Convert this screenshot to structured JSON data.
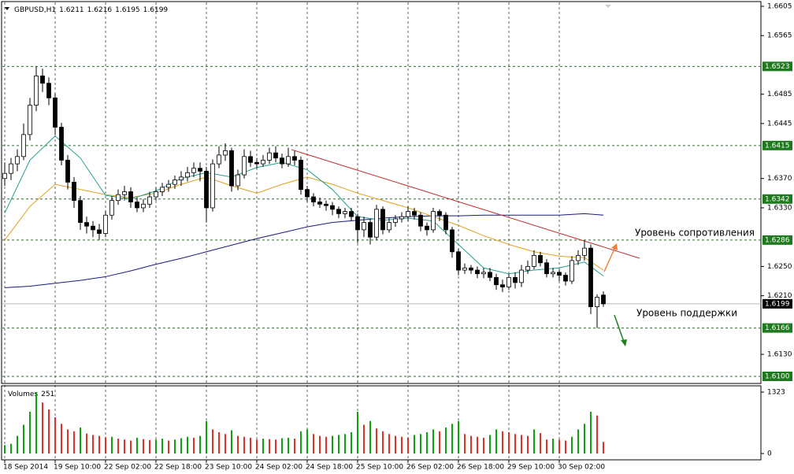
{
  "chart_data": {
    "type": "candlestick",
    "symbol": "GBPUSD,H1",
    "open": [
      1.637,
      1.6377,
      1.639,
      1.64,
      1.643,
      1.647,
      1.651,
      1.65,
      1.648,
      1.644,
      1.6395,
      1.6365,
      1.634,
      1.631,
      1.6305,
      1.63,
      1.6295,
      1.632,
      1.634,
      1.6348,
      1.6352,
      1.6338,
      1.633,
      1.6335,
      1.6345,
      1.6352,
      1.6358,
      1.6362,
      1.6368,
      1.6372,
      1.6378,
      1.6384,
      1.638,
      1.633,
      1.639,
      1.6402,
      1.6408,
      1.636,
      1.6375,
      1.64,
      1.6392,
      1.639,
      1.6395,
      1.6405,
      1.6398,
      1.639,
      1.64,
      1.6395,
      1.6355,
      1.6345,
      1.6338,
      1.6335,
      1.6333,
      1.6328,
      1.6322,
      1.6325,
      1.6318,
      1.63,
      1.631,
      1.629,
      1.6328,
      1.63,
      1.631,
      1.6315,
      1.6318,
      1.6325,
      1.632,
      1.6305,
      1.63,
      1.6325,
      1.632,
      1.63,
      1.627,
      1.6245,
      1.6248,
      1.6245,
      1.624,
      1.6242,
      1.6235,
      1.6225,
      1.6222,
      1.6235,
      1.6228,
      1.6245,
      1.625,
      1.6265,
      1.6255,
      1.624,
      1.6242,
      1.6238,
      1.623,
      1.6258,
      1.6265,
      1.6275,
      1.6195,
      1.6211
    ],
    "high": [
      1.6392,
      1.6398,
      1.641,
      1.6445,
      1.648,
      1.6523,
      1.652,
      1.6508,
      1.6486,
      1.6446,
      1.6402,
      1.6372,
      1.6346,
      1.6318,
      1.6312,
      1.6308,
      1.6326,
      1.6346,
      1.6355,
      1.636,
      1.6358,
      1.6344,
      1.6342,
      1.6352,
      1.6358,
      1.6364,
      1.6368,
      1.6374,
      1.638,
      1.6386,
      1.6392,
      1.6392,
      1.6386,
      1.6396,
      1.6414,
      1.6418,
      1.6412,
      1.6382,
      1.641,
      1.6408,
      1.6398,
      1.6402,
      1.6412,
      1.6414,
      1.6404,
      1.6412,
      1.6408,
      1.64,
      1.636,
      1.635,
      1.6344,
      1.634,
      1.6338,
      1.6332,
      1.633,
      1.633,
      1.6322,
      1.6318,
      1.6314,
      1.6334,
      1.6332,
      1.6316,
      1.632,
      1.6324,
      1.6332,
      1.633,
      1.6324,
      1.631,
      1.633,
      1.6328,
      1.6324,
      1.6304,
      1.6274,
      1.6254,
      1.6252,
      1.625,
      1.6248,
      1.6248,
      1.624,
      1.6232,
      1.624,
      1.6242,
      1.6252,
      1.6258,
      1.6272,
      1.627,
      1.626,
      1.6248,
      1.6246,
      1.6242,
      1.6264,
      1.6272,
      1.6286,
      1.628,
      1.6212,
      1.6216
    ],
    "low": [
      1.636,
      1.6368,
      1.638,
      1.6395,
      1.6422,
      1.6462,
      1.6488,
      1.647,
      1.643,
      1.6388,
      1.6355,
      1.633,
      1.63,
      1.6295,
      1.629,
      1.6286,
      1.629,
      1.6314,
      1.6334,
      1.634,
      1.633,
      1.6324,
      1.6324,
      1.633,
      1.634,
      1.6346,
      1.6352,
      1.6356,
      1.636,
      1.6366,
      1.6372,
      1.6366,
      1.631,
      1.6325,
      1.6384,
      1.6394,
      1.6352,
      1.6354,
      1.637,
      1.6386,
      1.6384,
      1.6386,
      1.639,
      1.6392,
      1.6384,
      1.6386,
      1.6388,
      1.6348,
      1.6338,
      1.6332,
      1.633,
      1.6326,
      1.632,
      1.6316,
      1.6316,
      1.6312,
      1.6282,
      1.629,
      1.628,
      1.6286,
      1.6294,
      1.6296,
      1.6304,
      1.631,
      1.6312,
      1.6314,
      1.6298,
      1.6292,
      1.6296,
      1.6312,
      1.6294,
      1.6262,
      1.6238,
      1.624,
      1.624,
      1.6234,
      1.6234,
      1.623,
      1.6218,
      1.6215,
      1.6218,
      1.622,
      1.6222,
      1.624,
      1.6246,
      1.625,
      1.6235,
      1.6235,
      1.623,
      1.6224,
      1.6226,
      1.6252,
      1.6258,
      1.6185,
      1.6166,
      1.6195
    ],
    "close": [
      1.6377,
      1.639,
      1.64,
      1.643,
      1.647,
      1.651,
      1.65,
      1.648,
      1.644,
      1.6395,
      1.6365,
      1.634,
      1.631,
      1.6305,
      1.63,
      1.6295,
      1.632,
      1.634,
      1.6348,
      1.6352,
      1.6338,
      1.633,
      1.6335,
      1.6345,
      1.6352,
      1.6358,
      1.6362,
      1.6368,
      1.6372,
      1.6378,
      1.6384,
      1.638,
      1.633,
      1.639,
      1.6402,
      1.6408,
      1.636,
      1.6375,
      1.64,
      1.6392,
      1.639,
      1.6395,
      1.6405,
      1.6398,
      1.639,
      1.64,
      1.6395,
      1.6355,
      1.6345,
      1.6338,
      1.6335,
      1.6333,
      1.6328,
      1.6322,
      1.6325,
      1.6318,
      1.63,
      1.631,
      1.629,
      1.6328,
      1.63,
      1.631,
      1.6315,
      1.6318,
      1.6325,
      1.632,
      1.6305,
      1.63,
      1.6325,
      1.632,
      1.63,
      1.627,
      1.6245,
      1.6248,
      1.6245,
      1.624,
      1.6242,
      1.6235,
      1.6225,
      1.6222,
      1.6235,
      1.6228,
      1.6245,
      1.625,
      1.6265,
      1.6255,
      1.624,
      1.6242,
      1.6238,
      1.623,
      1.6258,
      1.6265,
      1.6275,
      1.6195,
      1.6208,
      1.6199
    ],
    "ylim": [
      1.61,
      1.6605
    ],
    "yticks": [
      1.6605,
      1.6565,
      1.6485,
      1.6445,
      {
        "value": 1.637,
        "label": "1.6370"
      },
      {
        "value": 1.633,
        "label": "1.6330"
      },
      {
        "value": 1.625,
        "label": "1.6250"
      },
      {
        "value": 1.621,
        "label": "1.6210"
      },
      {
        "value": 1.613,
        "label": "1.6130"
      }
    ],
    "levels": [
      1.6523,
      1.6415,
      1.6342,
      1.6286,
      1.6166,
      {
        "value": 1.61,
        "label": "1.6100"
      }
    ],
    "level_color": "#1f7a1f",
    "xticks": [
      {
        "value": 0,
        "label": "18 Sep 2014"
      },
      {
        "value": 8,
        "label": "19 Sep 10:00"
      },
      {
        "value": 16,
        "label": "22 Sep 02:00"
      },
      {
        "value": 24,
        "label": "22 Sep 18:00"
      },
      {
        "value": 32,
        "label": "23 Sep 10:00"
      },
      {
        "value": 40,
        "label": "24 Sep 02:00"
      },
      {
        "value": 48,
        "label": "24 Sep 18:00"
      },
      {
        "value": 56,
        "label": "25 Sep 10:00"
      },
      {
        "value": 64,
        "label": "26 Sep 02:00"
      },
      {
        "value": 72,
        "label": "26 Sep 18:00"
      },
      {
        "value": 80,
        "label": "29 Sep 10:00"
      },
      {
        "value": 88,
        "label": "30 Sep 02:00"
      }
    ],
    "moving_averages": [
      {
        "color": "#1a1a80",
        "x": [
          0,
          4,
          8,
          12,
          16,
          20,
          24,
          28,
          32,
          36,
          40,
          44,
          48,
          52,
          56,
          60,
          64,
          68,
          72,
          76,
          80,
          84,
          88,
          92,
          95
        ],
        "values": [
          1.6221,
          1.6223,
          1.6227,
          1.6231,
          1.6236,
          1.6244,
          1.6253,
          1.6261,
          1.627,
          1.6279,
          1.6288,
          1.6296,
          1.6304,
          1.631,
          1.6313,
          1.6316,
          1.6318,
          1.6319,
          1.6319,
          1.632,
          1.632,
          1.632,
          1.632,
          1.6322,
          1.632
        ]
      },
      {
        "color": "#e0a020",
        "x": [
          0,
          4,
          8,
          12,
          16,
          20,
          24,
          28,
          32,
          36,
          40,
          44,
          48,
          52,
          56,
          60,
          64,
          68,
          72,
          76,
          80,
          84,
          88,
          92,
          95
        ],
        "values": [
          1.6286,
          1.6332,
          1.6362,
          1.6355,
          1.6348,
          1.6344,
          1.635,
          1.6362,
          1.6372,
          1.636,
          1.635,
          1.6362,
          1.6372,
          1.6362,
          1.635,
          1.634,
          1.633,
          1.6318,
          1.6306,
          1.6292,
          1.628,
          1.627,
          1.6264,
          1.6262,
          1.6245
        ]
      },
      {
        "color": "#20a090",
        "x": [
          0,
          4,
          8,
          12,
          16,
          20,
          24,
          28,
          32,
          36,
          40,
          44,
          48,
          52,
          56,
          60,
          64,
          68,
          72,
          76,
          80,
          84,
          88,
          92,
          95
        ],
        "values": [
          1.6323,
          1.6395,
          1.6428,
          1.6398,
          1.6347,
          1.6342,
          1.6353,
          1.637,
          1.6378,
          1.6372,
          1.6385,
          1.6392,
          1.6382,
          1.6355,
          1.6318,
          1.6313,
          1.6316,
          1.6312,
          1.628,
          1.6248,
          1.624,
          1.6245,
          1.6248,
          1.6256,
          1.6237
        ]
      }
    ],
    "volume": {
      "label": "Volumes",
      "up_color": "#10a010",
      "down_color": "#e03030",
      "ylim": [
        0,
        1323
      ],
      "yticks": [
        0,
        1323
      ],
      "values": [
        180,
        210,
        380,
        620,
        900,
        1323,
        1100,
        950,
        780,
        640,
        520,
        480,
        560,
        430,
        400,
        380,
        350,
        360,
        320,
        300,
        280,
        340,
        310,
        290,
        300,
        320,
        280,
        300,
        330,
        360,
        340,
        380,
        700,
        520,
        460,
        420,
        500,
        380,
        360,
        340,
        300,
        320,
        310,
        300,
        330,
        340,
        320,
        480,
        520,
        420,
        380,
        360,
        380,
        400,
        420,
        460,
        900,
        620,
        700,
        540,
        480,
        420,
        380,
        360,
        340,
        400,
        420,
        460,
        520,
        480,
        560,
        640,
        700,
        420,
        380,
        360,
        340,
        400,
        520,
        480,
        460,
        420,
        400,
        380,
        520,
        440,
        300,
        320,
        300,
        280,
        360,
        520,
        640,
        900,
        820,
        251
      ]
    },
    "annotations": [
      "Уровень сопротивления",
      "Уровень поддержки"
    ]
  }
}
